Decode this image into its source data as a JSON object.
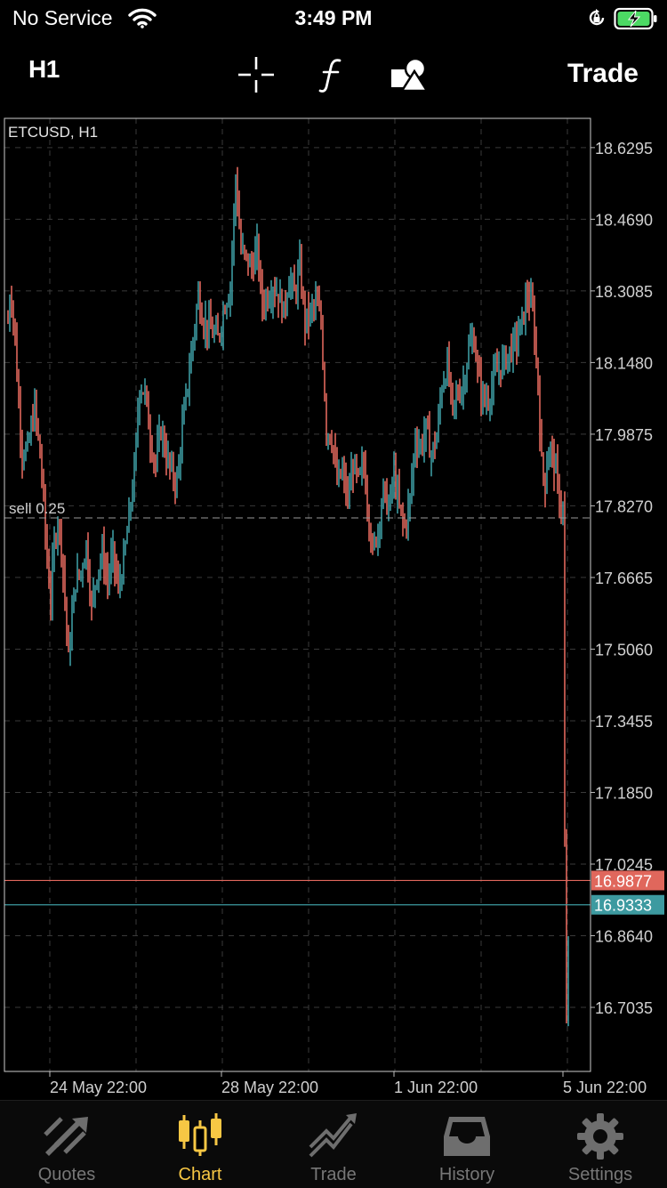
{
  "status_bar": {
    "carrier": "No Service",
    "time": "3:49 PM"
  },
  "toolbar": {
    "timeframe": "H1",
    "trade_label": "Trade",
    "icons": [
      "crosshair-icon",
      "indicators-icon",
      "objects-icon"
    ]
  },
  "chart": {
    "symbol_label": "ETCUSD, H1",
    "order_line_label": "sell 0.25",
    "colors": {
      "up": "#3d9aa0",
      "down": "#e0675c",
      "grid": "#3a3a3a",
      "frame": "#cccccc",
      "ask_line": "#e0675c",
      "bid_line": "#3d9aa0"
    }
  },
  "chart_data": {
    "type": "candlestick",
    "symbol": "ETCUSD",
    "timeframe": "H1",
    "y_ticks": [
      "18.6295",
      "18.4690",
      "18.3085",
      "18.1480",
      "17.9875",
      "17.8270",
      "17.6665",
      "17.5060",
      "17.3455",
      "17.1850",
      "17.0245",
      "16.8640",
      "16.7035"
    ],
    "ylim": [
      16.56,
      18.695
    ],
    "x_ticks": [
      "24 May 22:00",
      "28 May 22:00",
      "1 Jun 22:00",
      "5 Jun 22:00"
    ],
    "price_labels": [
      {
        "value": 16.9877,
        "text": "16.9877",
        "kind": "ask"
      },
      {
        "value": 16.9333,
        "text": "16.9333",
        "kind": "bid"
      }
    ],
    "order_line": {
      "price": 17.8,
      "label": "sell 0.25"
    },
    "path": [
      [
        0,
        18.24
      ],
      [
        3,
        18.32
      ],
      [
        8,
        18.2
      ],
      [
        12,
        18.05
      ],
      [
        16,
        17.95
      ],
      [
        22,
        17.95
      ],
      [
        30,
        18.05
      ],
      [
        38,
        17.9
      ],
      [
        44,
        17.7
      ],
      [
        48,
        17.62
      ],
      [
        52,
        17.74
      ],
      [
        56,
        17.8
      ],
      [
        60,
        17.74
      ],
      [
        64,
        17.62
      ],
      [
        68,
        17.48
      ],
      [
        72,
        17.58
      ],
      [
        76,
        17.66
      ],
      [
        82,
        17.68
      ],
      [
        88,
        17.74
      ],
      [
        94,
        17.6
      ],
      [
        100,
        17.68
      ],
      [
        106,
        17.72
      ],
      [
        112,
        17.66
      ],
      [
        118,
        17.72
      ],
      [
        124,
        17.64
      ],
      [
        130,
        17.7
      ],
      [
        136,
        17.8
      ],
      [
        142,
        17.9
      ],
      [
        148,
        18.1
      ],
      [
        154,
        18.08
      ],
      [
        160,
        17.98
      ],
      [
        166,
        17.92
      ],
      [
        172,
        18.0
      ],
      [
        178,
        17.94
      ],
      [
        184,
        17.9
      ],
      [
        190,
        17.88
      ],
      [
        196,
        18.0
      ],
      [
        202,
        18.1
      ],
      [
        208,
        18.2
      ],
      [
        214,
        18.3
      ],
      [
        220,
        18.24
      ],
      [
        228,
        18.22
      ],
      [
        236,
        18.2
      ],
      [
        244,
        18.28
      ],
      [
        250,
        18.32
      ],
      [
        256,
        18.56
      ],
      [
        262,
        18.4
      ],
      [
        268,
        18.38
      ],
      [
        274,
        18.36
      ],
      [
        280,
        18.4
      ],
      [
        286,
        18.28
      ],
      [
        292,
        18.3
      ],
      [
        298,
        18.32
      ],
      [
        304,
        18.3
      ],
      [
        310,
        18.26
      ],
      [
        316,
        18.34
      ],
      [
        322,
        18.3
      ],
      [
        328,
        18.36
      ],
      [
        334,
        18.24
      ],
      [
        340,
        18.26
      ],
      [
        346,
        18.28
      ],
      [
        352,
        18.24
      ],
      [
        358,
        18.0
      ],
      [
        364,
        17.98
      ],
      [
        370,
        17.88
      ],
      [
        376,
        17.9
      ],
      [
        382,
        17.84
      ],
      [
        388,
        17.92
      ],
      [
        394,
        17.88
      ],
      [
        400,
        17.92
      ],
      [
        406,
        17.8
      ],
      [
        410,
        17.72
      ],
      [
        416,
        17.78
      ],
      [
        422,
        17.86
      ],
      [
        428,
        17.82
      ],
      [
        434,
        17.9
      ],
      [
        440,
        17.82
      ],
      [
        446,
        17.78
      ],
      [
        452,
        17.84
      ],
      [
        458,
        17.98
      ],
      [
        464,
        17.96
      ],
      [
        470,
        18.0
      ],
      [
        476,
        17.94
      ],
      [
        482,
        17.98
      ],
      [
        488,
        18.1
      ],
      [
        494,
        18.14
      ],
      [
        500,
        18.04
      ],
      [
        506,
        18.08
      ],
      [
        512,
        18.1
      ],
      [
        518,
        18.18
      ],
      [
        524,
        18.2
      ],
      [
        530,
        18.1
      ],
      [
        536,
        18.06
      ],
      [
        542,
        18.08
      ],
      [
        548,
        18.12
      ],
      [
        554,
        18.14
      ],
      [
        560,
        18.16
      ],
      [
        566,
        18.18
      ],
      [
        572,
        18.2
      ],
      [
        578,
        18.24
      ],
      [
        584,
        18.3
      ],
      [
        590,
        18.26
      ],
      [
        596,
        18.1
      ],
      [
        600,
        17.92
      ],
      [
        604,
        17.88
      ],
      [
        608,
        17.96
      ],
      [
        612,
        17.94
      ],
      [
        616,
        17.9
      ],
      [
        620,
        17.84
      ],
      [
        624,
        17.82
      ],
      [
        626,
        17.06
      ],
      [
        628,
        16.66
      ],
      [
        631,
        16.92
      ]
    ]
  },
  "tabs": [
    {
      "label": "Quotes",
      "icon": "quotes-icon",
      "active": false
    },
    {
      "label": "Chart",
      "icon": "chart-icon",
      "active": true
    },
    {
      "label": "Trade",
      "icon": "trade-icon",
      "active": false
    },
    {
      "label": "History",
      "icon": "history-icon",
      "active": false
    },
    {
      "label": "Settings",
      "icon": "settings-icon",
      "active": false
    }
  ]
}
